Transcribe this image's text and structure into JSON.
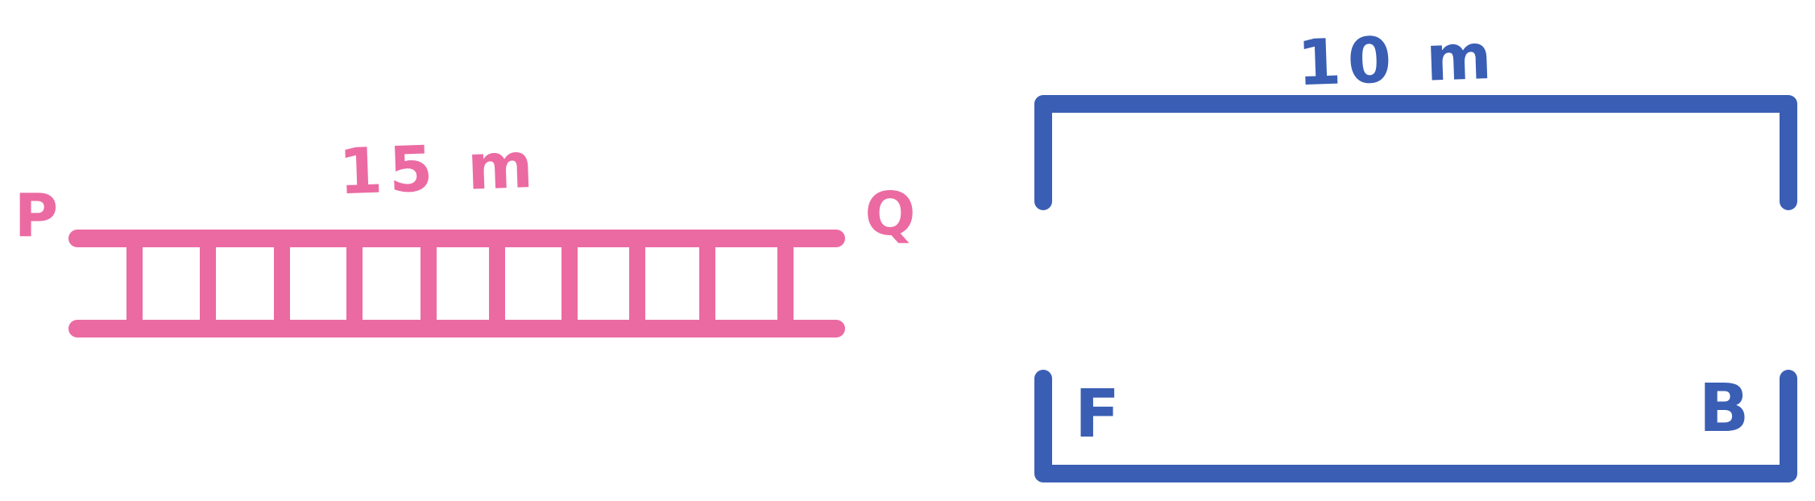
{
  "colors": {
    "ladder": "#eb6aa2",
    "room": "#3a5eb4",
    "background": "#ffffff"
  },
  "ladder": {
    "end_left": "P",
    "end_right": "Q",
    "length_label": "15 m",
    "rungs": 10
  },
  "room": {
    "width_label": "10 m",
    "corner_left": "F",
    "corner_right": "B"
  }
}
